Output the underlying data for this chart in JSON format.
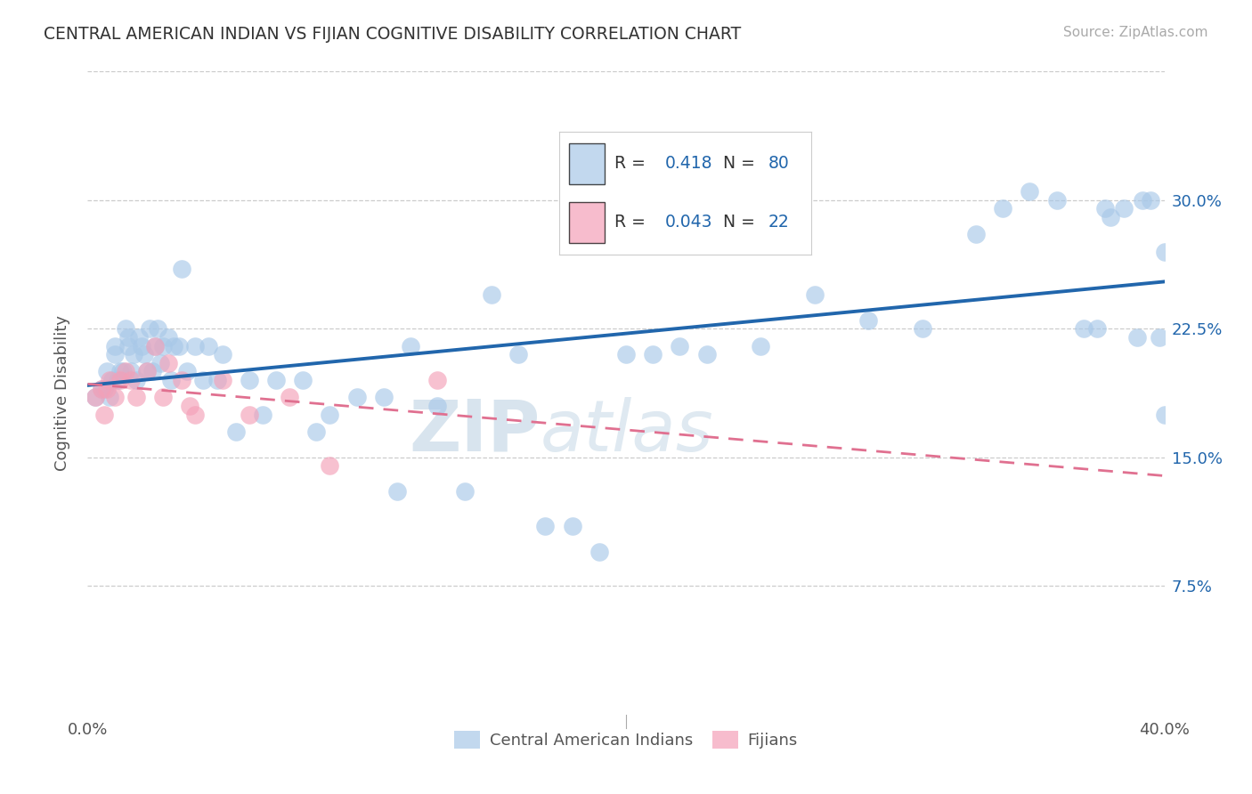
{
  "title": "CENTRAL AMERICAN INDIAN VS FIJIAN COGNITIVE DISABILITY CORRELATION CHART",
  "source": "Source: ZipAtlas.com",
  "ylabel": "Cognitive Disability",
  "ytick_labels": [
    "7.5%",
    "15.0%",
    "22.5%",
    "30.0%"
  ],
  "ytick_values": [
    0.075,
    0.15,
    0.225,
    0.3
  ],
  "xlim": [
    0.0,
    0.4
  ],
  "ylim": [
    0.0,
    0.375
  ],
  "blue_color": "#a8c8e8",
  "pink_color": "#f4a0b8",
  "blue_line_color": "#2166ac",
  "pink_line_color": "#e07090",
  "watermark_zip": "ZIP",
  "watermark_atlas": "atlas",
  "blue_scatter_x": [
    0.003,
    0.005,
    0.006,
    0.007,
    0.008,
    0.009,
    0.01,
    0.01,
    0.011,
    0.012,
    0.013,
    0.014,
    0.015,
    0.015,
    0.016,
    0.017,
    0.018,
    0.019,
    0.02,
    0.021,
    0.022,
    0.023,
    0.024,
    0.025,
    0.026,
    0.027,
    0.028,
    0.03,
    0.031,
    0.032,
    0.034,
    0.035,
    0.037,
    0.04,
    0.043,
    0.045,
    0.048,
    0.05,
    0.055,
    0.06,
    0.065,
    0.07,
    0.08,
    0.085,
    0.09,
    0.1,
    0.11,
    0.115,
    0.12,
    0.13,
    0.14,
    0.15,
    0.16,
    0.17,
    0.18,
    0.19,
    0.2,
    0.21,
    0.22,
    0.23,
    0.24,
    0.25,
    0.27,
    0.29,
    0.31,
    0.33,
    0.34,
    0.35,
    0.36,
    0.37,
    0.375,
    0.378,
    0.38,
    0.385,
    0.39,
    0.392,
    0.395,
    0.398,
    0.4,
    0.4
  ],
  "blue_scatter_y": [
    0.185,
    0.19,
    0.19,
    0.2,
    0.185,
    0.195,
    0.21,
    0.215,
    0.195,
    0.2,
    0.2,
    0.225,
    0.215,
    0.22,
    0.2,
    0.21,
    0.195,
    0.22,
    0.215,
    0.21,
    0.2,
    0.225,
    0.2,
    0.215,
    0.225,
    0.205,
    0.215,
    0.22,
    0.195,
    0.215,
    0.215,
    0.26,
    0.2,
    0.215,
    0.195,
    0.215,
    0.195,
    0.21,
    0.165,
    0.195,
    0.175,
    0.195,
    0.195,
    0.165,
    0.175,
    0.185,
    0.185,
    0.13,
    0.215,
    0.18,
    0.13,
    0.245,
    0.21,
    0.11,
    0.11,
    0.095,
    0.21,
    0.21,
    0.215,
    0.21,
    0.28,
    0.215,
    0.245,
    0.23,
    0.225,
    0.28,
    0.295,
    0.305,
    0.3,
    0.225,
    0.225,
    0.295,
    0.29,
    0.295,
    0.22,
    0.3,
    0.3,
    0.22,
    0.27,
    0.175
  ],
  "pink_scatter_x": [
    0.003,
    0.005,
    0.006,
    0.007,
    0.008,
    0.01,
    0.012,
    0.014,
    0.016,
    0.018,
    0.022,
    0.025,
    0.028,
    0.03,
    0.035,
    0.038,
    0.04,
    0.05,
    0.06,
    0.075,
    0.09,
    0.13
  ],
  "pink_scatter_y": [
    0.185,
    0.19,
    0.175,
    0.19,
    0.195,
    0.185,
    0.195,
    0.2,
    0.195,
    0.185,
    0.2,
    0.215,
    0.185,
    0.205,
    0.195,
    0.18,
    0.175,
    0.195,
    0.175,
    0.185,
    0.145,
    0.195
  ]
}
